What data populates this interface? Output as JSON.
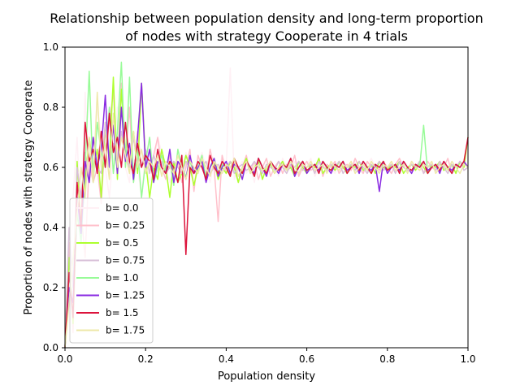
{
  "chart_data": {
    "type": "line",
    "title_line1": "Relationship between population density and long-term proportion",
    "title_line2": "of nodes with strategy Cooperate in 4 trials",
    "xlabel": "Population density",
    "ylabel": "Proportion of nodes with strategy Cooperate",
    "xlim": [
      0.0,
      1.0
    ],
    "ylim": [
      0.0,
      1.0
    ],
    "xticks": [
      "0.0",
      "0.2",
      "0.4",
      "0.6",
      "0.8",
      "1.0"
    ],
    "yticks": [
      "0.0",
      "0.2",
      "0.4",
      "0.6",
      "0.8",
      "1.0"
    ],
    "grid": false,
    "legend_position": "lower-left",
    "x": [
      0.0,
      0.01,
      0.02,
      0.03,
      0.04,
      0.05,
      0.06,
      0.07,
      0.08,
      0.09,
      0.1,
      0.11,
      0.12,
      0.13,
      0.14,
      0.15,
      0.16,
      0.17,
      0.18,
      0.19,
      0.2,
      0.21,
      0.22,
      0.23,
      0.24,
      0.25,
      0.26,
      0.27,
      0.28,
      0.29,
      0.3,
      0.31,
      0.32,
      0.33,
      0.34,
      0.35,
      0.36,
      0.37,
      0.38,
      0.39,
      0.4,
      0.41,
      0.42,
      0.43,
      0.44,
      0.45,
      0.46,
      0.47,
      0.48,
      0.49,
      0.5,
      0.51,
      0.52,
      0.53,
      0.54,
      0.55,
      0.56,
      0.57,
      0.58,
      0.59,
      0.6,
      0.61,
      0.62,
      0.63,
      0.64,
      0.65,
      0.66,
      0.67,
      0.68,
      0.69,
      0.7,
      0.71,
      0.72,
      0.73,
      0.74,
      0.75,
      0.76,
      0.77,
      0.78,
      0.79,
      0.8,
      0.81,
      0.82,
      0.83,
      0.84,
      0.85,
      0.86,
      0.87,
      0.88,
      0.89,
      0.9,
      0.91,
      0.92,
      0.93,
      0.94,
      0.95,
      0.96,
      0.97,
      0.98,
      0.99,
      1.0
    ],
    "series": [
      {
        "name": "b= 0.0",
        "color": "#fff0f5",
        "values": [
          0.0,
          0.2,
          0.5,
          0.7,
          0.4,
          0.85,
          0.55,
          0.6,
          0.8,
          0.7,
          0.6,
          0.5,
          0.65,
          0.8,
          0.75,
          0.6,
          0.55,
          0.7,
          0.6,
          0.5,
          0.65,
          0.55,
          0.6,
          0.7,
          0.65,
          0.6,
          0.55,
          0.6,
          0.62,
          0.58,
          0.65,
          0.6,
          0.55,
          0.6,
          0.65,
          0.6,
          0.55,
          0.62,
          0.58,
          0.64,
          0.6,
          0.93,
          0.56,
          0.6,
          0.62,
          0.58,
          0.6,
          0.55,
          0.63,
          0.6,
          0.58,
          0.62,
          0.6,
          0.57,
          0.63,
          0.6,
          0.59,
          0.62,
          0.58,
          0.6,
          0.61,
          0.63,
          0.57,
          0.6,
          0.62,
          0.59,
          0.6,
          0.58,
          0.62,
          0.6,
          0.61,
          0.59,
          0.62,
          0.6,
          0.58,
          0.61,
          0.63,
          0.6,
          0.59,
          0.62,
          0.6,
          0.61,
          0.58,
          0.62,
          0.6,
          0.59,
          0.61,
          0.6,
          0.62,
          0.58,
          0.6,
          0.61,
          0.59,
          0.62,
          0.6,
          0.58,
          0.61,
          0.6,
          0.62,
          0.59,
          0.6
        ]
      },
      {
        "name": "b= 0.25",
        "color": "#ffc0cb",
        "values": [
          0.0,
          0.35,
          0.05,
          0.5,
          0.45,
          0.3,
          0.62,
          0.55,
          0.6,
          0.48,
          0.7,
          0.75,
          0.85,
          0.6,
          0.88,
          0.62,
          0.8,
          0.55,
          0.72,
          0.6,
          0.66,
          0.58,
          0.64,
          0.7,
          0.6,
          0.56,
          0.64,
          0.58,
          0.62,
          0.55,
          0.6,
          0.66,
          0.52,
          0.64,
          0.6,
          0.57,
          0.66,
          0.6,
          0.42,
          0.64,
          0.58,
          0.6,
          0.62,
          0.55,
          0.6,
          0.64,
          0.58,
          0.62,
          0.56,
          0.6,
          0.63,
          0.57,
          0.6,
          0.62,
          0.58,
          0.61,
          0.6,
          0.64,
          0.57,
          0.6,
          0.62,
          0.59,
          0.6,
          0.63,
          0.57,
          0.61,
          0.6,
          0.62,
          0.58,
          0.6,
          0.61,
          0.59,
          0.63,
          0.6,
          0.58,
          0.62,
          0.6,
          0.61,
          0.59,
          0.62,
          0.6,
          0.58,
          0.61,
          0.63,
          0.6,
          0.59,
          0.62,
          0.6,
          0.61,
          0.58,
          0.62,
          0.6,
          0.59,
          0.61,
          0.6,
          0.63,
          0.58,
          0.61,
          0.6,
          0.62,
          0.6
        ]
      },
      {
        "name": "b= 0.5",
        "color": "#adff2f",
        "values": [
          0.0,
          0.3,
          0.08,
          0.62,
          0.4,
          0.55,
          0.7,
          0.6,
          0.66,
          0.5,
          0.75,
          0.62,
          0.9,
          0.56,
          0.86,
          0.65,
          0.6,
          0.72,
          0.58,
          0.88,
          0.62,
          0.5,
          0.6,
          0.56,
          0.66,
          0.6,
          0.5,
          0.62,
          0.55,
          0.58,
          0.64,
          0.6,
          0.54,
          0.6,
          0.63,
          0.57,
          0.6,
          0.62,
          0.56,
          0.6,
          0.58,
          0.62,
          0.6,
          0.55,
          0.6,
          0.63,
          0.58,
          0.6,
          0.62,
          0.56,
          0.6,
          0.61,
          0.58,
          0.6,
          0.62,
          0.59,
          0.6,
          0.57,
          0.62,
          0.6,
          0.58,
          0.61,
          0.6,
          0.63,
          0.58,
          0.6,
          0.61,
          0.59,
          0.62,
          0.6,
          0.58,
          0.61,
          0.6,
          0.62,
          0.59,
          0.6,
          0.61,
          0.58,
          0.62,
          0.6,
          0.59,
          0.61,
          0.6,
          0.62,
          0.58,
          0.6,
          0.61,
          0.59,
          0.62,
          0.6,
          0.58,
          0.61,
          0.6,
          0.62,
          0.59,
          0.6,
          0.61,
          0.58,
          0.62,
          0.6,
          0.7
        ]
      },
      {
        "name": "b= 0.75",
        "color": "#d8bfd8",
        "values": [
          0.0,
          0.4,
          0.2,
          0.6,
          0.5,
          0.65,
          0.55,
          0.7,
          0.6,
          0.58,
          0.75,
          0.62,
          0.68,
          0.6,
          0.72,
          0.65,
          0.6,
          0.7,
          0.62,
          0.6,
          0.66,
          0.58,
          0.64,
          0.6,
          0.62,
          0.58,
          0.6,
          0.62,
          0.6,
          0.58,
          0.62,
          0.6,
          0.58,
          0.61,
          0.6,
          0.62,
          0.58,
          0.6,
          0.61,
          0.59,
          0.6,
          0.62,
          0.58,
          0.6,
          0.61,
          0.59,
          0.6,
          0.62,
          0.6,
          0.58,
          0.61,
          0.6,
          0.59,
          0.62,
          0.6,
          0.58,
          0.61,
          0.6,
          0.62,
          0.59,
          0.6,
          0.61,
          0.58,
          0.62,
          0.6,
          0.59,
          0.61,
          0.6,
          0.62,
          0.58,
          0.6,
          0.61,
          0.59,
          0.62,
          0.6,
          0.58,
          0.61,
          0.6,
          0.62,
          0.59,
          0.6,
          0.61,
          0.58,
          0.62,
          0.6,
          0.59,
          0.61,
          0.6,
          0.62,
          0.58,
          0.6,
          0.61,
          0.59,
          0.62,
          0.6,
          0.58,
          0.61,
          0.6,
          0.62,
          0.59,
          0.6
        ]
      },
      {
        "name": "b= 1.0",
        "color": "#98fb98",
        "values": [
          0.0,
          0.25,
          0.1,
          0.45,
          0.35,
          0.6,
          0.92,
          0.55,
          0.75,
          0.65,
          0.6,
          0.8,
          0.58,
          0.72,
          0.95,
          0.6,
          0.9,
          0.55,
          0.66,
          0.5,
          0.62,
          0.7,
          0.55,
          0.6,
          0.64,
          0.58,
          0.62,
          0.54,
          0.66,
          0.6,
          0.57,
          0.62,
          0.58,
          0.6,
          0.64,
          0.56,
          0.6,
          0.63,
          0.58,
          0.61,
          0.6,
          0.57,
          0.63,
          0.6,
          0.58,
          0.62,
          0.6,
          0.57,
          0.63,
          0.6,
          0.58,
          0.62,
          0.6,
          0.59,
          0.61,
          0.6,
          0.63,
          0.58,
          0.6,
          0.62,
          0.59,
          0.6,
          0.61,
          0.58,
          0.62,
          0.6,
          0.59,
          0.61,
          0.6,
          0.62,
          0.58,
          0.6,
          0.61,
          0.59,
          0.62,
          0.6,
          0.58,
          0.61,
          0.6,
          0.62,
          0.59,
          0.6,
          0.61,
          0.58,
          0.62,
          0.6,
          0.59,
          0.61,
          0.6,
          0.74,
          0.58,
          0.6,
          0.61,
          0.59,
          0.62,
          0.6,
          0.58,
          0.61,
          0.6,
          0.62,
          0.6
        ]
      },
      {
        "name": "b= 1.25",
        "color": "#8a2be2",
        "values": [
          0.0,
          0.2,
          0.15,
          0.5,
          0.38,
          0.62,
          0.55,
          0.7,
          0.6,
          0.66,
          0.84,
          0.6,
          0.74,
          0.58,
          0.8,
          0.62,
          0.68,
          0.56,
          0.7,
          0.88,
          0.6,
          0.66,
          0.55,
          0.62,
          0.6,
          0.58,
          0.66,
          0.55,
          0.62,
          0.6,
          0.56,
          0.64,
          0.58,
          0.6,
          0.62,
          0.55,
          0.6,
          0.63,
          0.57,
          0.6,
          0.62,
          0.58,
          0.61,
          0.6,
          0.56,
          0.62,
          0.6,
          0.58,
          0.63,
          0.6,
          0.57,
          0.62,
          0.6,
          0.58,
          0.61,
          0.6,
          0.63,
          0.57,
          0.6,
          0.62,
          0.58,
          0.6,
          0.61,
          0.59,
          0.62,
          0.6,
          0.58,
          0.61,
          0.6,
          0.62,
          0.59,
          0.6,
          0.61,
          0.58,
          0.62,
          0.6,
          0.59,
          0.61,
          0.52,
          0.62,
          0.58,
          0.6,
          0.61,
          0.59,
          0.62,
          0.6,
          0.58,
          0.61,
          0.6,
          0.62,
          0.59,
          0.6,
          0.61,
          0.58,
          0.62,
          0.6,
          0.59,
          0.61,
          0.6,
          0.62,
          0.6
        ]
      },
      {
        "name": "b= 1.5",
        "color": "#dc143c",
        "values": [
          0.0,
          0.25,
          0.1,
          0.55,
          0.4,
          0.75,
          0.62,
          0.66,
          0.58,
          0.72,
          0.6,
          0.78,
          0.65,
          0.7,
          0.6,
          0.75,
          0.62,
          0.58,
          0.68,
          0.6,
          0.64,
          0.62,
          0.56,
          0.66,
          0.6,
          0.58,
          0.62,
          0.6,
          0.55,
          0.64,
          0.31,
          0.6,
          0.58,
          0.62,
          0.6,
          0.56,
          0.64,
          0.6,
          0.58,
          0.62,
          0.6,
          0.57,
          0.63,
          0.6,
          0.58,
          0.62,
          0.6,
          0.57,
          0.63,
          0.6,
          0.58,
          0.62,
          0.6,
          0.59,
          0.61,
          0.6,
          0.63,
          0.58,
          0.6,
          0.62,
          0.59,
          0.6,
          0.61,
          0.58,
          0.62,
          0.6,
          0.59,
          0.61,
          0.6,
          0.62,
          0.58,
          0.6,
          0.61,
          0.59,
          0.62,
          0.6,
          0.58,
          0.61,
          0.6,
          0.62,
          0.59,
          0.6,
          0.61,
          0.58,
          0.62,
          0.6,
          0.59,
          0.61,
          0.6,
          0.62,
          0.58,
          0.6,
          0.61,
          0.59,
          0.62,
          0.6,
          0.58,
          0.61,
          0.6,
          0.62,
          0.7
        ]
      },
      {
        "name": "b= 1.75",
        "color": "#eee8aa",
        "values": [
          0.0,
          0.15,
          0.3,
          0.45,
          0.6,
          0.5,
          0.7,
          0.55,
          0.85,
          0.6,
          0.68,
          0.56,
          0.78,
          0.6,
          0.7,
          0.64,
          0.58,
          0.72,
          0.6,
          0.66,
          0.58,
          0.62,
          0.6,
          0.64,
          0.57,
          0.62,
          0.6,
          0.58,
          0.64,
          0.6,
          0.56,
          0.62,
          0.6,
          0.58,
          0.63,
          0.6,
          0.57,
          0.62,
          0.6,
          0.58,
          0.61,
          0.6,
          0.63,
          0.57,
          0.6,
          0.62,
          0.58,
          0.6,
          0.61,
          0.59,
          0.6,
          0.62,
          0.58,
          0.6,
          0.61,
          0.59,
          0.62,
          0.6,
          0.58,
          0.61,
          0.6,
          0.62,
          0.59,
          0.6,
          0.61,
          0.58,
          0.62,
          0.6,
          0.59,
          0.61,
          0.6,
          0.62,
          0.58,
          0.6,
          0.61,
          0.59,
          0.62,
          0.6,
          0.58,
          0.61,
          0.6,
          0.62,
          0.59,
          0.6,
          0.61,
          0.58,
          0.62,
          0.6,
          0.59,
          0.61,
          0.6,
          0.62,
          0.58,
          0.6,
          0.61,
          0.59,
          0.62,
          0.6,
          0.58,
          0.61,
          0.6
        ]
      }
    ]
  }
}
